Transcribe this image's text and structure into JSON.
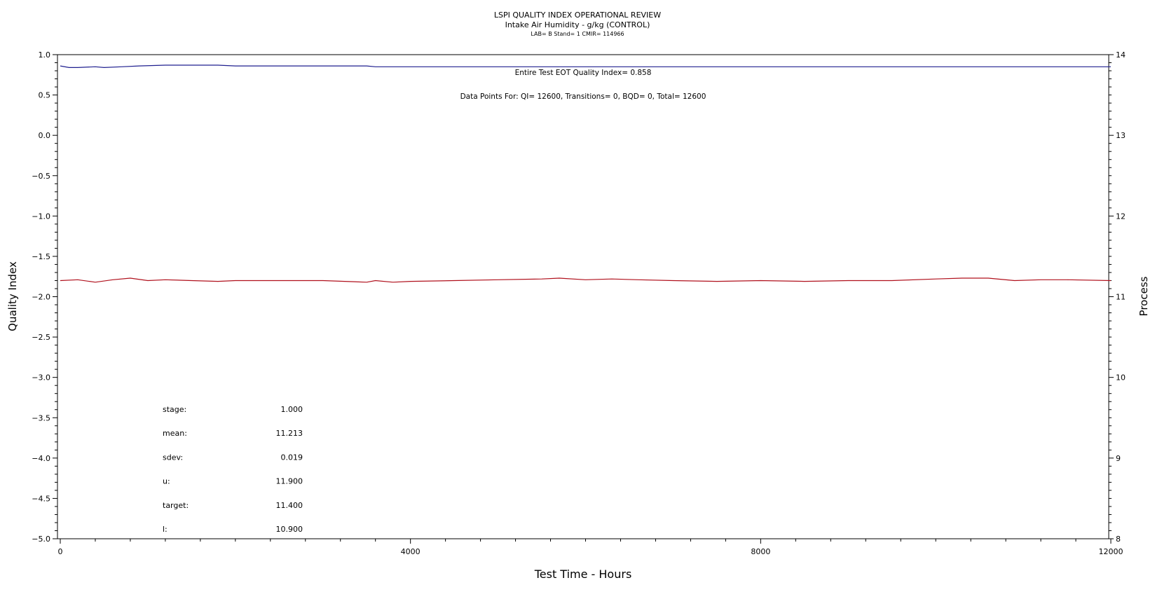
{
  "chart_data": {
    "type": "line",
    "title": "LSPI QUALITY INDEX OPERATIONAL REVIEW",
    "subtitle": "Intake Air Humidity - g/kg (CONTROL)",
    "subtitle2": "LAB= B Stand= 1 CMIR= 114966",
    "xlabel": "Test Time - Hours",
    "ylabel_left": "Quality Index",
    "ylabel_right": "Process",
    "xlim": [
      0,
      12000
    ],
    "ylim_left": [
      -5.0,
      1.0
    ],
    "ylim_right": [
      8,
      14
    ],
    "x_ticks": [
      "0",
      "4000",
      "8000",
      "12000"
    ],
    "y_left_ticks": [
      "1.0",
      "0.5",
      "0.0",
      "-0.5",
      "-1.0",
      "-1.5",
      "-2.0",
      "-2.5",
      "-3.0",
      "-3.5",
      "-4.0",
      "-4.5",
      "-5.0"
    ],
    "y_right_ticks": [
      "14",
      "13",
      "12",
      "11",
      "10",
      "9",
      "8"
    ],
    "annotation_qi": "Entire Test EOT Quality Index=   0.858",
    "annotation_points": "Data Points For: QI= 12600, Transitions=     0, BQD=     0, Total= 12600",
    "stats": [
      {
        "label": "stage:",
        "value": "1.000"
      },
      {
        "label": "mean:",
        "value": "11.213"
      },
      {
        "label": "sdev:",
        "value": "0.019"
      },
      {
        "label": "u:",
        "value": "11.900"
      },
      {
        "label": "target:",
        "value": "11.400"
      },
      {
        "label": "l:",
        "value": "10.900"
      }
    ],
    "series": [
      {
        "axis": "left",
        "color": "#1f1f8f",
        "x": [
          0,
          100,
          200,
          400,
          500,
          700,
          900,
          1200,
          1800,
          2000,
          2500,
          3000,
          3500,
          3600,
          4000,
          5000,
          6000,
          7000,
          8000,
          9000,
          10000,
          11000,
          12000
        ],
        "values": [
          0.86,
          0.84,
          0.84,
          0.85,
          0.84,
          0.85,
          0.86,
          0.87,
          0.87,
          0.86,
          0.86,
          0.86,
          0.86,
          0.85,
          0.85,
          0.85,
          0.85,
          0.85,
          0.85,
          0.85,
          0.85,
          0.85,
          0.85
        ]
      },
      {
        "axis": "right",
        "color": "#b0101c",
        "x": [
          0,
          200,
          400,
          600,
          800,
          1000,
          1200,
          1500,
          1800,
          2000,
          2500,
          3000,
          3500,
          3600,
          3800,
          4000,
          4500,
          5000,
          5500,
          5700,
          6000,
          6300,
          6600,
          7000,
          7500,
          8000,
          8500,
          9000,
          9500,
          10000,
          10300,
          10600,
          10900,
          11200,
          11500,
          12000
        ],
        "values": [
          11.2,
          11.21,
          11.18,
          11.21,
          11.23,
          11.2,
          11.21,
          11.2,
          11.19,
          11.2,
          11.2,
          11.2,
          11.18,
          11.2,
          11.18,
          11.19,
          11.2,
          11.21,
          11.22,
          11.23,
          11.21,
          11.22,
          11.21,
          11.2,
          11.19,
          11.2,
          11.19,
          11.2,
          11.2,
          11.22,
          11.23,
          11.23,
          11.2,
          11.21,
          11.21,
          11.2
        ]
      }
    ]
  }
}
